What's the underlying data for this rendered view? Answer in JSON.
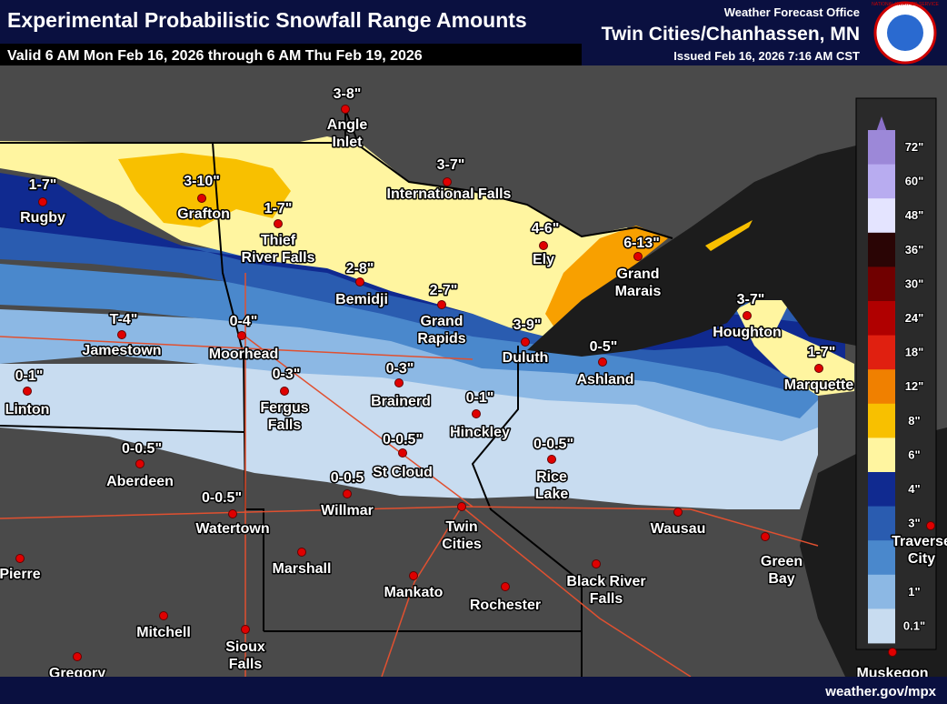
{
  "header": {
    "title": "Experimental Probabilistic Snowfall Range Amounts",
    "valid": "Valid 6 AM Mon Feb 16, 2026 through 6 AM Thu Feb 19, 2026",
    "office": "Weather Forecast Office",
    "location": "Twin Cities/Chanhassen, MN",
    "issued": "Issued Feb 16, 2026 7:16 AM CST",
    "logo_text": "NATIONAL WEATHER SERVICE"
  },
  "cities": [
    {
      "name": "Angle Inlet",
      "amount": "3-8\""
    },
    {
      "name": "International Falls",
      "amount": "3-7\""
    },
    {
      "name": "Rugby",
      "amount": "1-7\""
    },
    {
      "name": "Grafton",
      "amount": "3-10\""
    },
    {
      "name": "Thief River Falls",
      "amount": "1-7\""
    },
    {
      "name": "Ely",
      "amount": "4-6\""
    },
    {
      "name": "Grand Marais",
      "amount": "6-13\""
    },
    {
      "name": "Bemidji",
      "amount": "2-8\""
    },
    {
      "name": "Grand Rapids",
      "amount": "2-7\""
    },
    {
      "name": "Jamestown",
      "amount": "T-4\""
    },
    {
      "name": "Moorhead",
      "amount": "0-4\""
    },
    {
      "name": "Duluth",
      "amount": "3-9\""
    },
    {
      "name": "Houghton",
      "amount": "3-7\""
    },
    {
      "name": "Ashland",
      "amount": "0-5\""
    },
    {
      "name": "Marquette",
      "amount": "1-7\""
    },
    {
      "name": "Linton",
      "amount": "0-1\""
    },
    {
      "name": "Fergus Falls",
      "amount": "0-3\""
    },
    {
      "name": "Brainerd",
      "amount": "0-3\""
    },
    {
      "name": "Hinckley",
      "amount": "0-1\""
    },
    {
      "name": "Aberdeen",
      "amount": "0-0.5\""
    },
    {
      "name": "St Cloud",
      "amount": "0-0.5\""
    },
    {
      "name": "Rice Lake",
      "amount": "0-0.5\""
    },
    {
      "name": "Willmar",
      "amount": "0-0.5"
    },
    {
      "name": "Watertown",
      "amount": "0-0.5\""
    },
    {
      "name": "Twin Cities"
    },
    {
      "name": "Pierre"
    },
    {
      "name": "Marshall"
    },
    {
      "name": "Wausau"
    },
    {
      "name": "Green Bay"
    },
    {
      "name": "Mankato"
    },
    {
      "name": "Rochester"
    },
    {
      "name": "Black River Falls"
    },
    {
      "name": "Mitchell"
    },
    {
      "name": "Sioux Falls"
    },
    {
      "name": "Gregory"
    },
    {
      "name": "Muskegon"
    },
    {
      "name": "Traverse City"
    }
  ],
  "legend": {
    "labels": [
      "72\"",
      "60\"",
      "48\"",
      "36\"",
      "30\"",
      "24\"",
      "18\"",
      "12\"",
      "8\"",
      "6\"",
      "4\"",
      "3\"",
      "2\"",
      "1\"",
      "0.1\""
    ]
  },
  "footer": {
    "url": "weather.gov/mpx"
  }
}
